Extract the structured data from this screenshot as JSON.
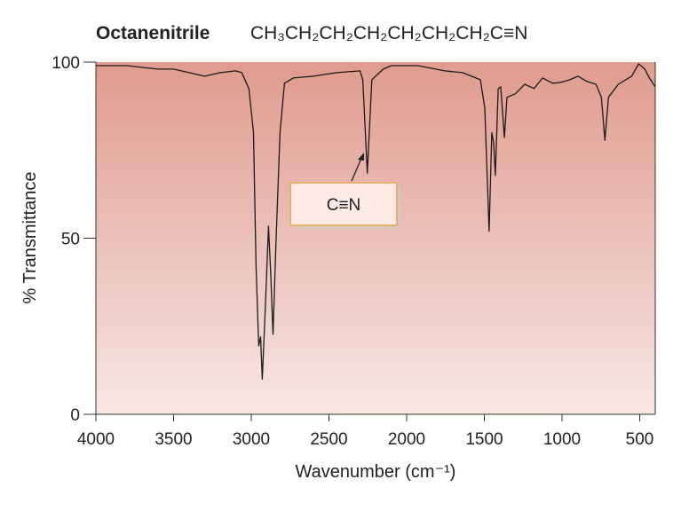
{
  "chart_data": {
    "type": "line",
    "title": "Octanenitrile",
    "subtitle": "CH₃CH₂CH₂CH₂CH₂CH₂CH₂C≡N",
    "x_label": "Wavenumber (cm⁻¹)",
    "y_label": "% Transmittance",
    "annotation": "C≡N",
    "xlim": [
      4000,
      400
    ],
    "ylim": [
      0,
      100
    ],
    "xticks": [
      4000,
      3500,
      3000,
      2500,
      2000,
      1500,
      1000,
      500
    ],
    "yticks": [
      0,
      50,
      100
    ],
    "series": [
      {
        "color": "#1a1a1a",
        "x": [
          4000,
          3900,
          3800,
          3700,
          3600,
          3500,
          3400,
          3300,
          3200,
          3100,
          3061,
          3015,
          2986,
          2969,
          2952,
          2940,
          2929,
          2910,
          2889,
          2875,
          2860,
          2840,
          2815,
          2786,
          2729,
          2600,
          2450,
          2300,
          2282,
          2253,
          2224,
          2150,
          2099,
          1927,
          1755,
          1640,
          1526,
          1497,
          1469,
          1452,
          1440,
          1429,
          1411,
          1394,
          1371,
          1354,
          1300,
          1240,
          1180,
          1125,
          1060,
          1011,
          950,
          896,
          840,
          781,
          747,
          724,
          701,
          638,
          552,
          507,
          467,
          438,
          400
        ],
        "values": [
          99,
          99,
          99,
          98.5,
          98,
          98,
          97,
          96,
          97,
          97.5,
          97,
          92.4,
          80,
          42,
          19.4,
          22,
          10,
          30,
          53.4,
          40,
          22.7,
          50,
          80,
          94,
          95.5,
          96,
          97,
          97.5,
          95,
          68.5,
          95,
          98,
          99,
          99,
          97.5,
          97,
          95,
          87,
          52,
          80,
          77,
          67.8,
          92.4,
          93,
          78.6,
          90,
          91,
          93.7,
          92.5,
          95.5,
          94,
          94.2,
          95,
          96,
          94.5,
          93.7,
          90,
          77.8,
          90,
          93.7,
          96,
          99.5,
          98,
          95.5,
          93
        ]
      }
    ]
  }
}
